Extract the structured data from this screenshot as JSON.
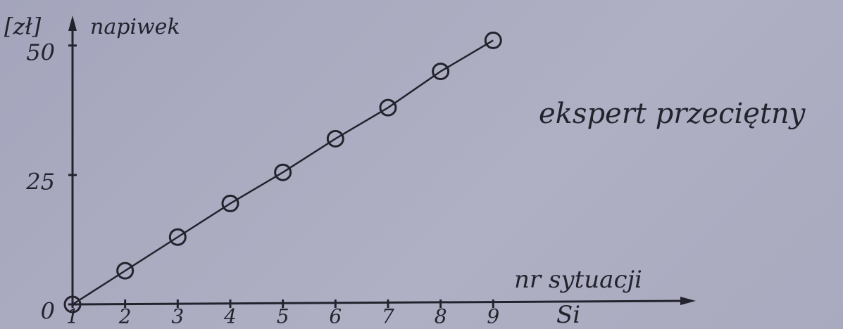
{
  "chart_data": {
    "type": "line",
    "y_unit": "[zł]",
    "y_label": "napiwek",
    "title": "ekspert przeciętny",
    "x_label": "nr sytuacji",
    "x_symbol": "Si",
    "x": [
      1,
      2,
      3,
      4,
      5,
      6,
      7,
      8,
      9
    ],
    "values": [
      0,
      6.5,
      13,
      19.5,
      25.5,
      32,
      38,
      45,
      51
    ],
    "color": "#23232e",
    "xlim": [
      1,
      12.8
    ],
    "xticks": [
      1,
      2,
      3,
      4,
      5,
      6,
      7,
      8,
      9
    ],
    "ylim": [
      0,
      55.4
    ],
    "yticks": [
      0,
      25,
      50
    ],
    "markers": "open-circle"
  }
}
